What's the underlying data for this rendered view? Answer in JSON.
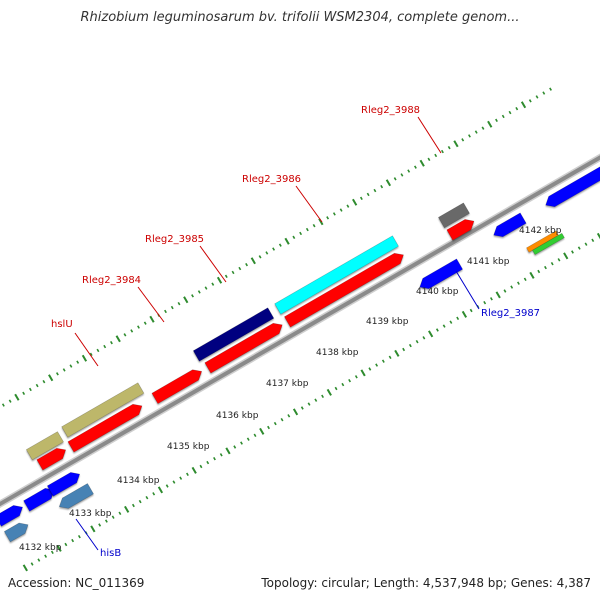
{
  "title": "Rhizobium leguminosarum bv. trifolii WSM2304, complete genom...",
  "footer": {
    "accession": "Accession: NC_011369",
    "summary": "Topology: circular; Length: 4,537,948 bp; Genes: 4,387"
  },
  "colors": {
    "backbone": "#8a8a8a",
    "tick": "#2e8b2e",
    "forward_label": "#cc0000",
    "reverse_label": "#0000cc",
    "scale_label": "#222222"
  },
  "scale_labels": [
    "4132 kbp",
    "4133 kbp",
    "4134 kbp",
    "4135 kbp",
    "4136 kbp",
    "4137 kbp",
    "4138 kbp",
    "4139 kbp",
    "4140 kbp",
    "4141 kbp",
    "4142 kbp"
  ],
  "gene_labels": [
    {
      "text": "hslU",
      "strand": "forward"
    },
    {
      "text": "Rleg2_3984",
      "strand": "forward"
    },
    {
      "text": "Rleg2_3985",
      "strand": "forward"
    },
    {
      "text": "Rleg2_3986",
      "strand": "forward"
    },
    {
      "text": "Rleg2_3988",
      "strand": "forward"
    },
    {
      "text": "Rleg2_3987",
      "strand": "reverse"
    },
    {
      "text": "hisB",
      "strand": "reverse"
    }
  ],
  "features": [
    {
      "name": "khaki-feature-1",
      "color": "#bdb76b"
    },
    {
      "name": "khaki-feature-2",
      "color": "#bdb76b"
    },
    {
      "name": "navy-feature",
      "color": "#000080"
    },
    {
      "name": "cyan-feature",
      "color": "#00ffff"
    },
    {
      "name": "gray-feature",
      "color": "#696969"
    },
    {
      "name": "red-feature-1",
      "color": "#ff0000"
    },
    {
      "name": "red-feature-2",
      "color": "#ff0000"
    },
    {
      "name": "red-feature-3",
      "color": "#ff0000"
    },
    {
      "name": "red-feature-4",
      "color": "#ff0000"
    },
    {
      "name": "red-feature-5",
      "color": "#ff0000"
    },
    {
      "name": "red-feature-6",
      "color": "#ff0000"
    },
    {
      "name": "blue-feature-1",
      "color": "#0000ff"
    },
    {
      "name": "blue-feature-2",
      "color": "#0000ff"
    },
    {
      "name": "blue-feature-3",
      "color": "#0000ff"
    },
    {
      "name": "blue-feature-4",
      "color": "#0000ff"
    },
    {
      "name": "blue-feature-5",
      "color": "#0000ff"
    },
    {
      "name": "blue-feature-6",
      "color": "#0000ff"
    },
    {
      "name": "steelblue-feature-1",
      "color": "#4682b4"
    },
    {
      "name": "steelblue-feature-2",
      "color": "#4682b4"
    },
    {
      "name": "orange-feature",
      "color": "#ff8c00"
    },
    {
      "name": "green-feature",
      "color": "#32cd32"
    }
  ]
}
